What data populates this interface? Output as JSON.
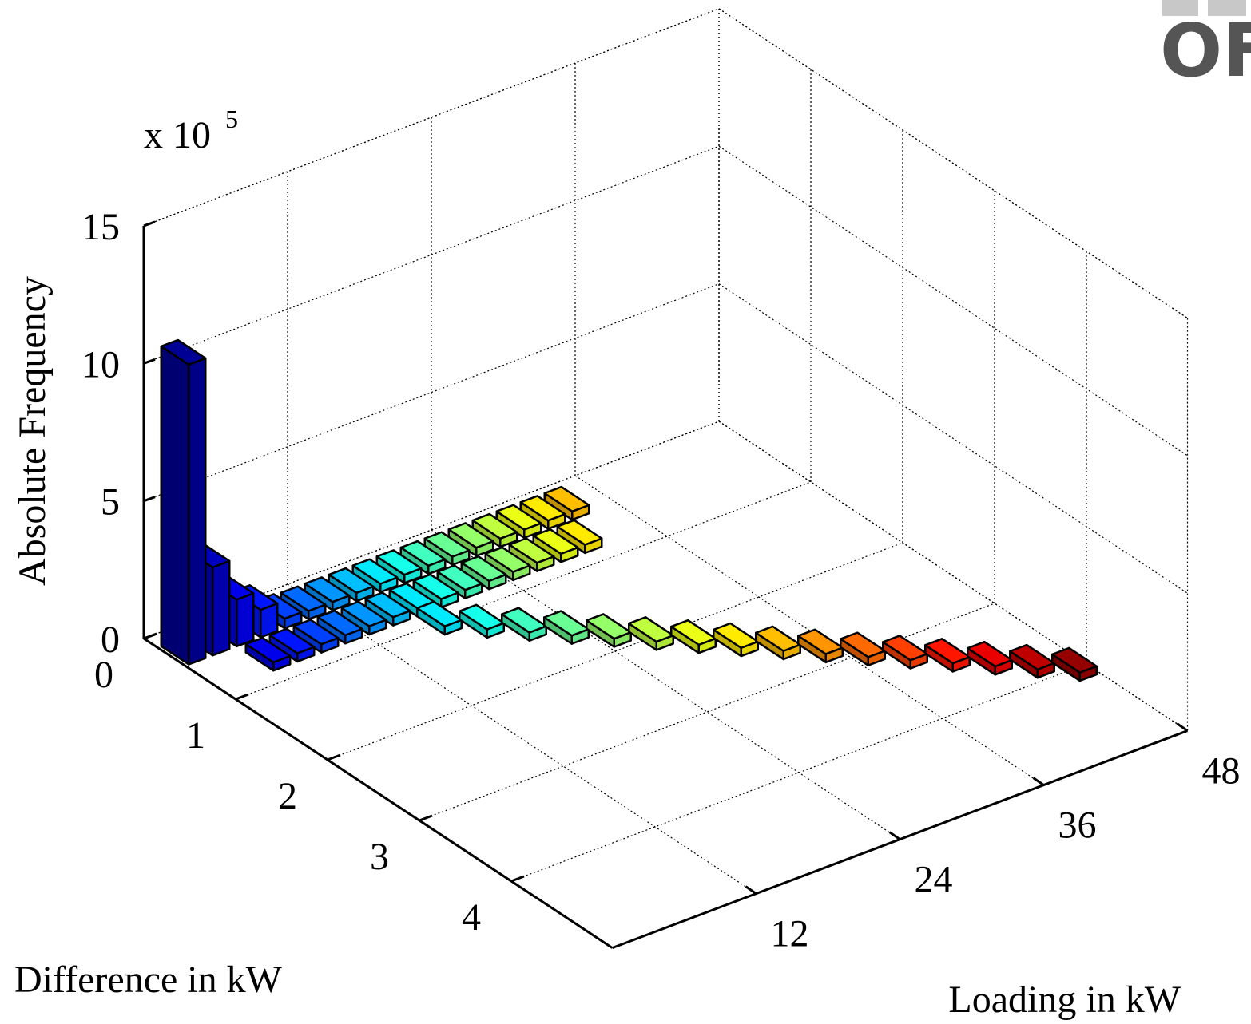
{
  "chart_data": {
    "type": "bar3d",
    "xlabel": "Loading in kW",
    "ylabel": "Difference in kW",
    "zlabel": "Absolute Frequency",
    "zscale_label": "x 10",
    "zscale_exponent": "5",
    "logo": "OF",
    "xlim": [
      0,
      48
    ],
    "xticks": [
      12,
      24,
      36,
      48
    ],
    "ylim": [
      0,
      5.1
    ],
    "yticks": [
      0,
      1,
      2,
      3,
      4
    ],
    "zlim": [
      0,
      15
    ],
    "zticks": [
      0,
      5,
      10,
      15
    ],
    "grid": true,
    "colormap": "jet",
    "bars": {
      "loading": [
        1,
        3,
        5,
        7,
        9,
        11,
        13,
        15,
        17,
        19,
        21,
        23,
        25,
        27,
        29,
        31,
        33,
        5,
        7,
        9,
        11,
        13,
        15,
        17,
        19,
        21,
        23,
        25,
        27,
        29,
        31,
        17,
        19,
        21,
        23,
        25,
        27,
        29,
        31,
        33,
        35,
        37,
        39,
        41,
        43,
        45,
        47
      ],
      "difference": [
        0.3,
        0.3,
        0.3,
        0.3,
        0.3,
        0.3,
        0.3,
        0.3,
        0.3,
        0.3,
        0.3,
        0.3,
        0.3,
        0.3,
        0.3,
        0.3,
        0.3,
        0.7,
        0.7,
        0.7,
        0.7,
        0.7,
        0.7,
        0.7,
        0.7,
        0.7,
        0.7,
        0.7,
        0.7,
        0.7,
        0.7,
        1.0,
        1.2,
        1.4,
        1.6,
        1.8,
        2.0,
        2.2,
        2.4,
        2.6,
        2.8,
        3.0,
        3.2,
        3.4,
        3.6,
        3.8,
        4.0
      ],
      "frequency": [
        10.9,
        3.2,
        1.7,
        1.0,
        0.35,
        0.3,
        0.3,
        0.3,
        0.3,
        0.3,
        0.3,
        0.3,
        0.3,
        0.3,
        0.3,
        0.3,
        0.3,
        0.3,
        0.3,
        0.3,
        0.3,
        0.3,
        0.3,
        0.3,
        0.3,
        0.3,
        0.3,
        0.3,
        0.3,
        0.3,
        0.3,
        0.3,
        0.3,
        0.3,
        0.3,
        0.3,
        0.3,
        0.3,
        0.3,
        0.3,
        0.3,
        0.3,
        0.3,
        0.3,
        0.3,
        0.3,
        0.3
      ]
    }
  }
}
